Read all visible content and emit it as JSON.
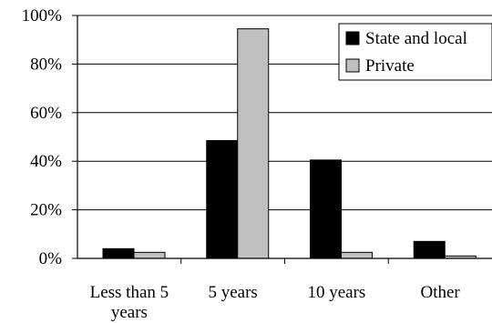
{
  "chart_data": {
    "type": "bar",
    "title": "",
    "xlabel": "",
    "ylabel": "",
    "categories": [
      [
        "Less than 5",
        "years"
      ],
      [
        "5 years"
      ],
      [
        "10 years"
      ],
      [
        "Other"
      ]
    ],
    "series": [
      {
        "name": "State and local",
        "color": "#000000",
        "values": [
          4,
          48.5,
          40.5,
          7
        ]
      },
      {
        "name": "Private",
        "color": "#c0c0c0",
        "values": [
          2.5,
          94.5,
          2.5,
          1
        ]
      }
    ],
    "ylim": [
      0,
      100
    ],
    "yticks": [
      {
        "value": 0,
        "label": "0%"
      },
      {
        "value": 20,
        "label": "20%"
      },
      {
        "value": 40,
        "label": "40%"
      },
      {
        "value": 60,
        "label": "60%"
      },
      {
        "value": 80,
        "label": "80%"
      },
      {
        "value": 100,
        "label": "100%"
      }
    ],
    "grid": true,
    "legend": "top-right"
  }
}
